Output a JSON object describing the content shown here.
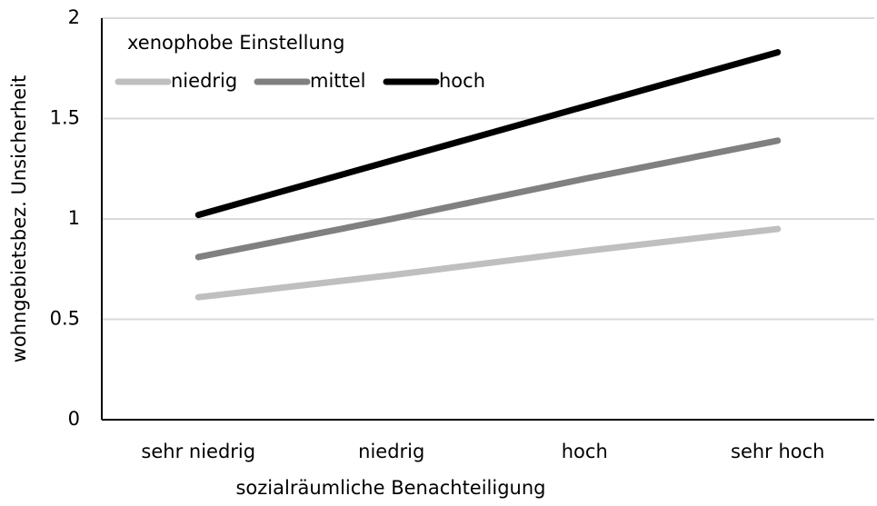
{
  "chart_data": {
    "type": "line",
    "x_label": "sozialräumliche Benachteiligung",
    "y_label": "wohngebietsbez. Unsicherheit",
    "legend_title": "xenophobe Einstellung",
    "legend": "top-left",
    "grid": true,
    "categories": [
      "sehr niedrig",
      "niedrig",
      "hoch",
      "sehr hoch"
    ],
    "series": [
      {
        "name": "niedrig",
        "color": "#bfbfbf",
        "values": [
          0.61,
          0.72,
          0.84,
          0.95
        ]
      },
      {
        "name": "mittel",
        "color": "#808080",
        "values": [
          0.81,
          1.0,
          1.2,
          1.39
        ]
      },
      {
        "name": "hoch",
        "color": "#000000",
        "values": [
          1.02,
          1.29,
          1.56,
          1.83
        ]
      }
    ],
    "ylim": [
      0,
      2
    ],
    "yticks": [
      0,
      0.5,
      1,
      1.5,
      2
    ]
  }
}
